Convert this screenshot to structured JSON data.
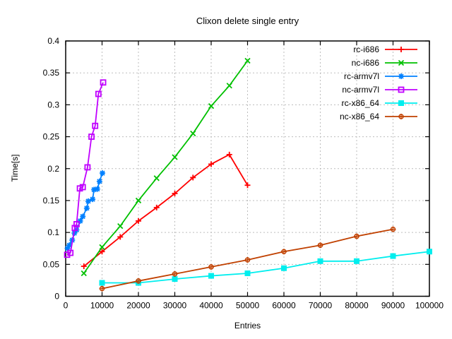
{
  "chart_data": {
    "type": "line",
    "title": "Clixon delete single entry",
    "xlabel": "Entries",
    "ylabel": "Time[s]",
    "xlim": [
      0,
      100000
    ],
    "ylim": [
      0,
      0.4
    ],
    "grid": true,
    "legend_position": "top-right-inside",
    "x_ticks": {
      "values": [
        0,
        10000,
        20000,
        30000,
        40000,
        50000,
        60000,
        70000,
        80000,
        90000,
        100000
      ],
      "labels": [
        "0",
        "10000",
        "20000",
        "30000",
        "40000",
        "50000",
        "60000",
        "70000",
        "80000",
        "90000",
        "100000"
      ]
    },
    "y_ticks": {
      "values": [
        0,
        0.05,
        0.1,
        0.15,
        0.2,
        0.25,
        0.3,
        0.35,
        0.4
      ],
      "labels": [
        "0",
        "0.05",
        "0.1",
        "0.15",
        "0.2",
        "0.25",
        "0.3",
        "0.35",
        "0.4"
      ]
    },
    "series": [
      {
        "name": "rc-i686",
        "color": "#ff0000",
        "marker": "plus",
        "x": [
          5000,
          10000,
          15000,
          20000,
          25000,
          30000,
          35000,
          40000,
          45000,
          50000
        ],
        "y": [
          0.047,
          0.07,
          0.093,
          0.118,
          0.139,
          0.161,
          0.186,
          0.207,
          0.222,
          0.174
        ]
      },
      {
        "name": "nc-i686",
        "color": "#00c000",
        "marker": "cross",
        "x": [
          5000,
          10000,
          15000,
          20000,
          25000,
          30000,
          35000,
          40000,
          45000,
          50000
        ],
        "y": [
          0.036,
          0.077,
          0.11,
          0.15,
          0.185,
          0.218,
          0.255,
          0.298,
          0.33,
          0.369
        ]
      },
      {
        "name": "rc-armv7l",
        "color": "#0080ff",
        "marker": "asterisk",
        "x": [
          500,
          1000,
          1800,
          2400,
          3000,
          4000,
          4700,
          5800,
          6200,
          7400,
          7800,
          8700,
          9300,
          10100
        ],
        "y": [
          0.075,
          0.08,
          0.088,
          0.099,
          0.104,
          0.118,
          0.125,
          0.138,
          0.149,
          0.152,
          0.167,
          0.168,
          0.18,
          0.193
        ]
      },
      {
        "name": "nc-armv7l",
        "color": "#c000ff",
        "marker": "open-square",
        "x": [
          400,
          1300,
          2500,
          3000,
          3900,
          4700,
          6000,
          7100,
          8100,
          9000,
          10300
        ],
        "y": [
          0.065,
          0.068,
          0.107,
          0.113,
          0.169,
          0.171,
          0.202,
          0.25,
          0.267,
          0.317,
          0.335
        ]
      },
      {
        "name": "rc-x86_64",
        "color": "#00eeee",
        "marker": "filled-square",
        "x": [
          10000,
          20000,
          30000,
          40000,
          50000,
          60000,
          70000,
          80000,
          90000,
          100000
        ],
        "y": [
          0.021,
          0.021,
          0.027,
          0.032,
          0.036,
          0.044,
          0.055,
          0.055,
          0.063,
          0.07
        ]
      },
      {
        "name": "nc-x86_64",
        "color": "#c04000",
        "marker": "circle-plus",
        "x": [
          10000,
          20000,
          30000,
          40000,
          50000,
          60000,
          70000,
          80000,
          90000
        ],
        "y": [
          0.012,
          0.024,
          0.035,
          0.046,
          0.057,
          0.07,
          0.08,
          0.094,
          0.105
        ]
      }
    ]
  }
}
